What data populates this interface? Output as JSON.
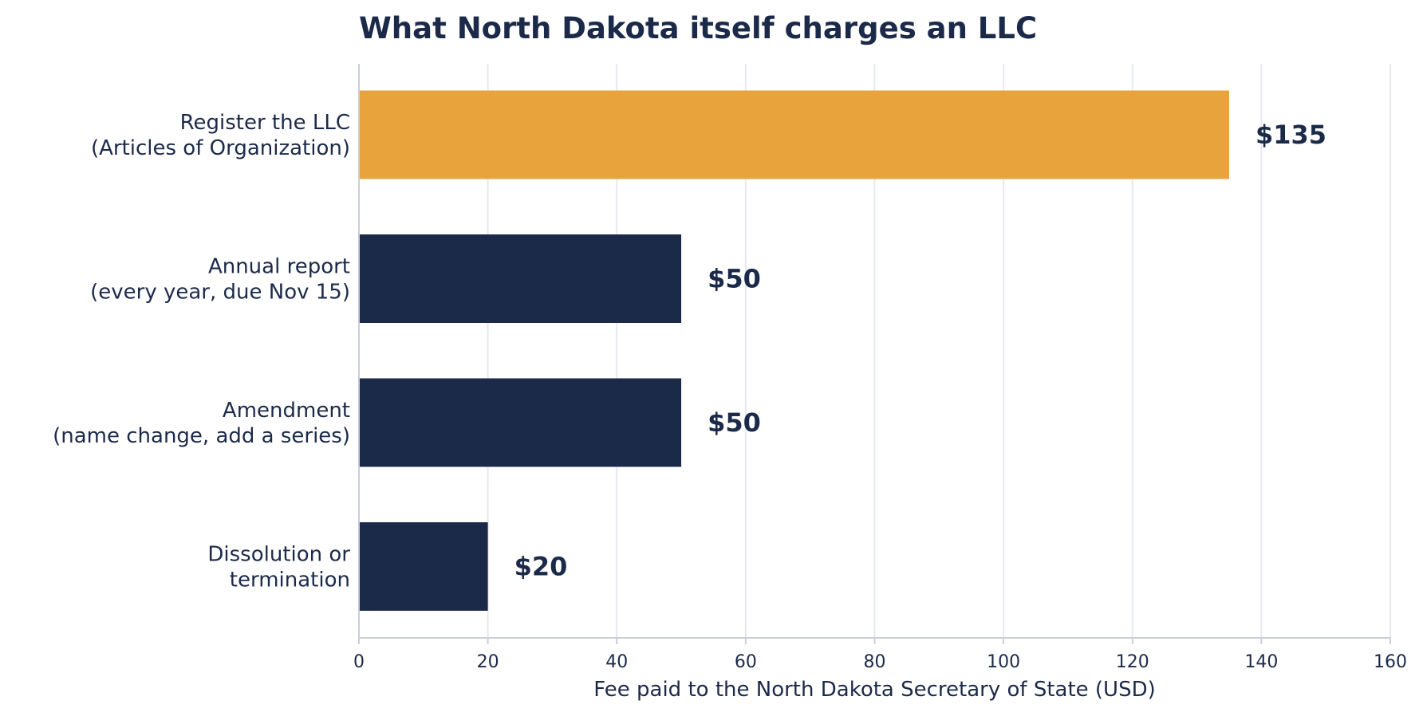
{
  "chart_data": {
    "type": "bar",
    "orientation": "horizontal",
    "title": "What North Dakota itself charges an LLC",
    "xlabel": "Fee paid to the North Dakota Secretary of State (USD)",
    "ylabel": "",
    "xlim": [
      0,
      160
    ],
    "xticks": [
      0,
      20,
      40,
      60,
      80,
      100,
      120,
      140,
      160
    ],
    "grid": "vertical",
    "legend": "none",
    "categories": [
      [
        "Register the LLC",
        "(Articles of Organization)"
      ],
      [
        "Annual report",
        "(every year, due Nov 15)"
      ],
      [
        "Amendment",
        "(name change, add a series)"
      ],
      [
        "Dissolution or",
        "termination"
      ]
    ],
    "values": [
      135,
      50,
      50,
      20
    ],
    "value_labels": [
      "$135",
      "$50",
      "$50",
      "$20"
    ],
    "colors": [
      "#e8a33d",
      "#1c2a4a",
      "#1c2a4a",
      "#1c2a4a"
    ]
  }
}
